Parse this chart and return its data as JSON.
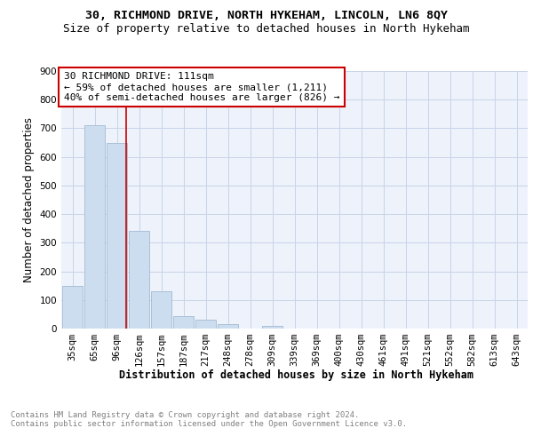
{
  "title1": "30, RICHMOND DRIVE, NORTH HYKEHAM, LINCOLN, LN6 8QY",
  "title2": "Size of property relative to detached houses in North Hykeham",
  "xlabel": "Distribution of detached houses by size in North Hykeham",
  "ylabel": "Number of detached properties",
  "categories": [
    "35sqm",
    "65sqm",
    "96sqm",
    "126sqm",
    "157sqm",
    "187sqm",
    "217sqm",
    "248sqm",
    "278sqm",
    "309sqm",
    "339sqm",
    "369sqm",
    "400sqm",
    "430sqm",
    "461sqm",
    "491sqm",
    "521sqm",
    "552sqm",
    "582sqm",
    "613sqm",
    "643sqm"
  ],
  "values": [
    150,
    710,
    650,
    340,
    130,
    42,
    30,
    14,
    0,
    10,
    0,
    0,
    0,
    0,
    0,
    0,
    0,
    0,
    0,
    0,
    0
  ],
  "bar_color": "#ccddf0",
  "bar_edgecolor": "#aac0d8",
  "grid_color": "#c8d4e8",
  "background_color": "#eef2fa",
  "annotation_box_text": "30 RICHMOND DRIVE: 111sqm\n← 59% of detached houses are smaller (1,211)\n40% of semi-detached houses are larger (826) →",
  "annotation_box_color": "#cc0000",
  "vline_color": "#cc0000",
  "vline_x": 2.43,
  "ylim": [
    0,
    900
  ],
  "yticks": [
    0,
    100,
    200,
    300,
    400,
    500,
    600,
    700,
    800,
    900
  ],
  "footnote": "Contains HM Land Registry data © Crown copyright and database right 2024.\nContains public sector information licensed under the Open Government Licence v3.0.",
  "title_fontsize": 9.5,
  "subtitle_fontsize": 9,
  "axis_label_fontsize": 8.5,
  "tick_fontsize": 7.5,
  "annot_fontsize": 8,
  "footnote_fontsize": 6.5
}
